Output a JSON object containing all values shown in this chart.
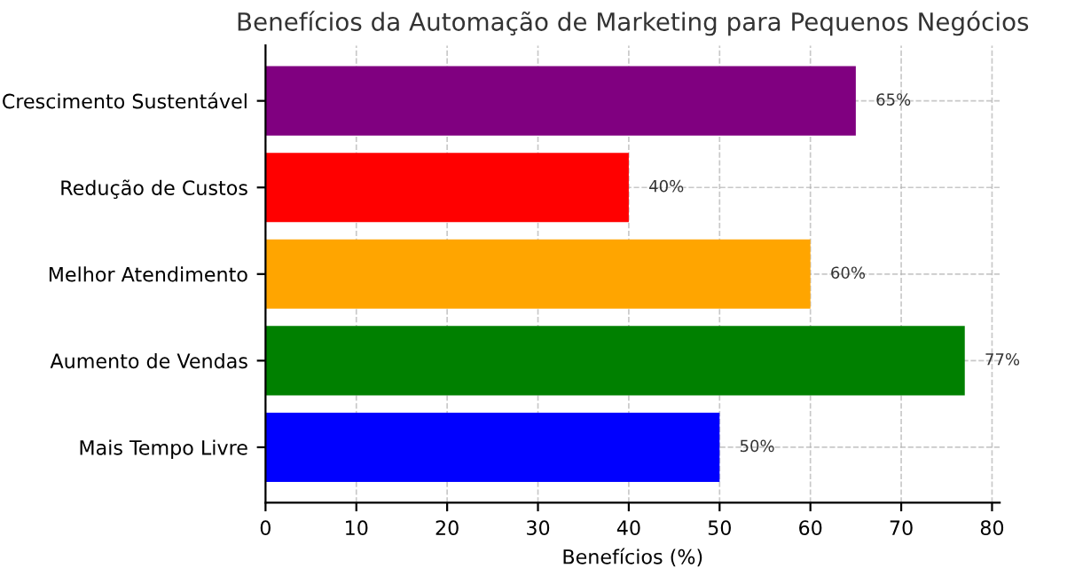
{
  "chart_data": {
    "type": "bar",
    "orientation": "horizontal",
    "title": "Benefícios da Automação de Marketing para Pequenos Negócios",
    "xlabel": "Benefícios (%)",
    "categories": [
      "Crescimento Sustentável",
      "Redução de Custos",
      "Melhor Atendimento",
      "Aumento de Vendas",
      "Mais Tempo Livre"
    ],
    "values": [
      65,
      40,
      60,
      77,
      50
    ],
    "colors": [
      "#800080",
      "#ff0000",
      "#ffa500",
      "#008000",
      "#0000ff"
    ],
    "value_labels": [
      "65%",
      "40%",
      "60%",
      "77%",
      "50%"
    ],
    "xlim": [
      0,
      80.85
    ],
    "xticks": [
      0,
      10,
      20,
      30,
      40,
      50,
      60,
      70,
      80
    ],
    "grid": true
  }
}
